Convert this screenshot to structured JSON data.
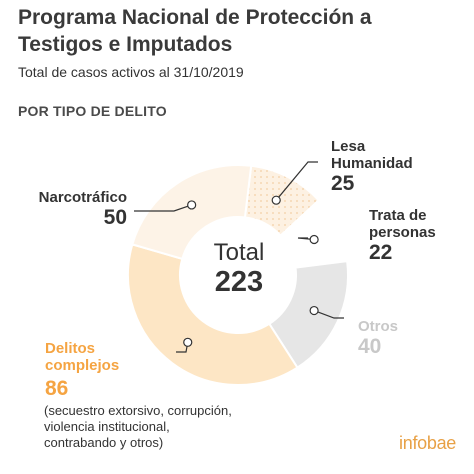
{
  "header": {
    "title": "Programa Nacional de Protección a Testigos e Imputados",
    "subtitle": "Total de casos activos al 31/10/2019",
    "section": "POR TIPO DE DELITO"
  },
  "chart_data": {
    "type": "pie",
    "style": "donut",
    "center_label": "Total",
    "total": "223",
    "slices": [
      {
        "name": "Lesa Humanidad",
        "value": 25,
        "display": "25",
        "fill": "#fdf1e2",
        "pattern": "dots"
      },
      {
        "name": "Trata de personas",
        "value": 22,
        "display": "22",
        "fill": "#ffffff"
      },
      {
        "name": "Otros",
        "value": 40,
        "display": "40",
        "fill": "#e6e6e6"
      },
      {
        "name": "Delitos complejos",
        "value": 86,
        "display": "86",
        "fill": "#fde6c5",
        "highlight": "#f5a442"
      },
      {
        "name": "Narcotráfico",
        "value": 50,
        "display": "50",
        "fill": "#fdf3e7"
      }
    ],
    "labels": {
      "lesa": [
        "Lesa",
        "Humanidad"
      ],
      "trata": [
        "Trata de",
        "personas"
      ],
      "otros": [
        "Otros"
      ],
      "complejos": [
        "Delitos",
        "complejos"
      ],
      "narco": [
        "Narcotráfico"
      ]
    },
    "note": [
      "(secuestro extorsivo, corrupción,",
      "violencia institucional,",
      "contrabando y otros)"
    ]
  },
  "colors": {
    "accent": "#f5a442",
    "muted": "#c8c8c8",
    "text": "#333333"
  },
  "footer": {
    "brand": "infobae"
  }
}
